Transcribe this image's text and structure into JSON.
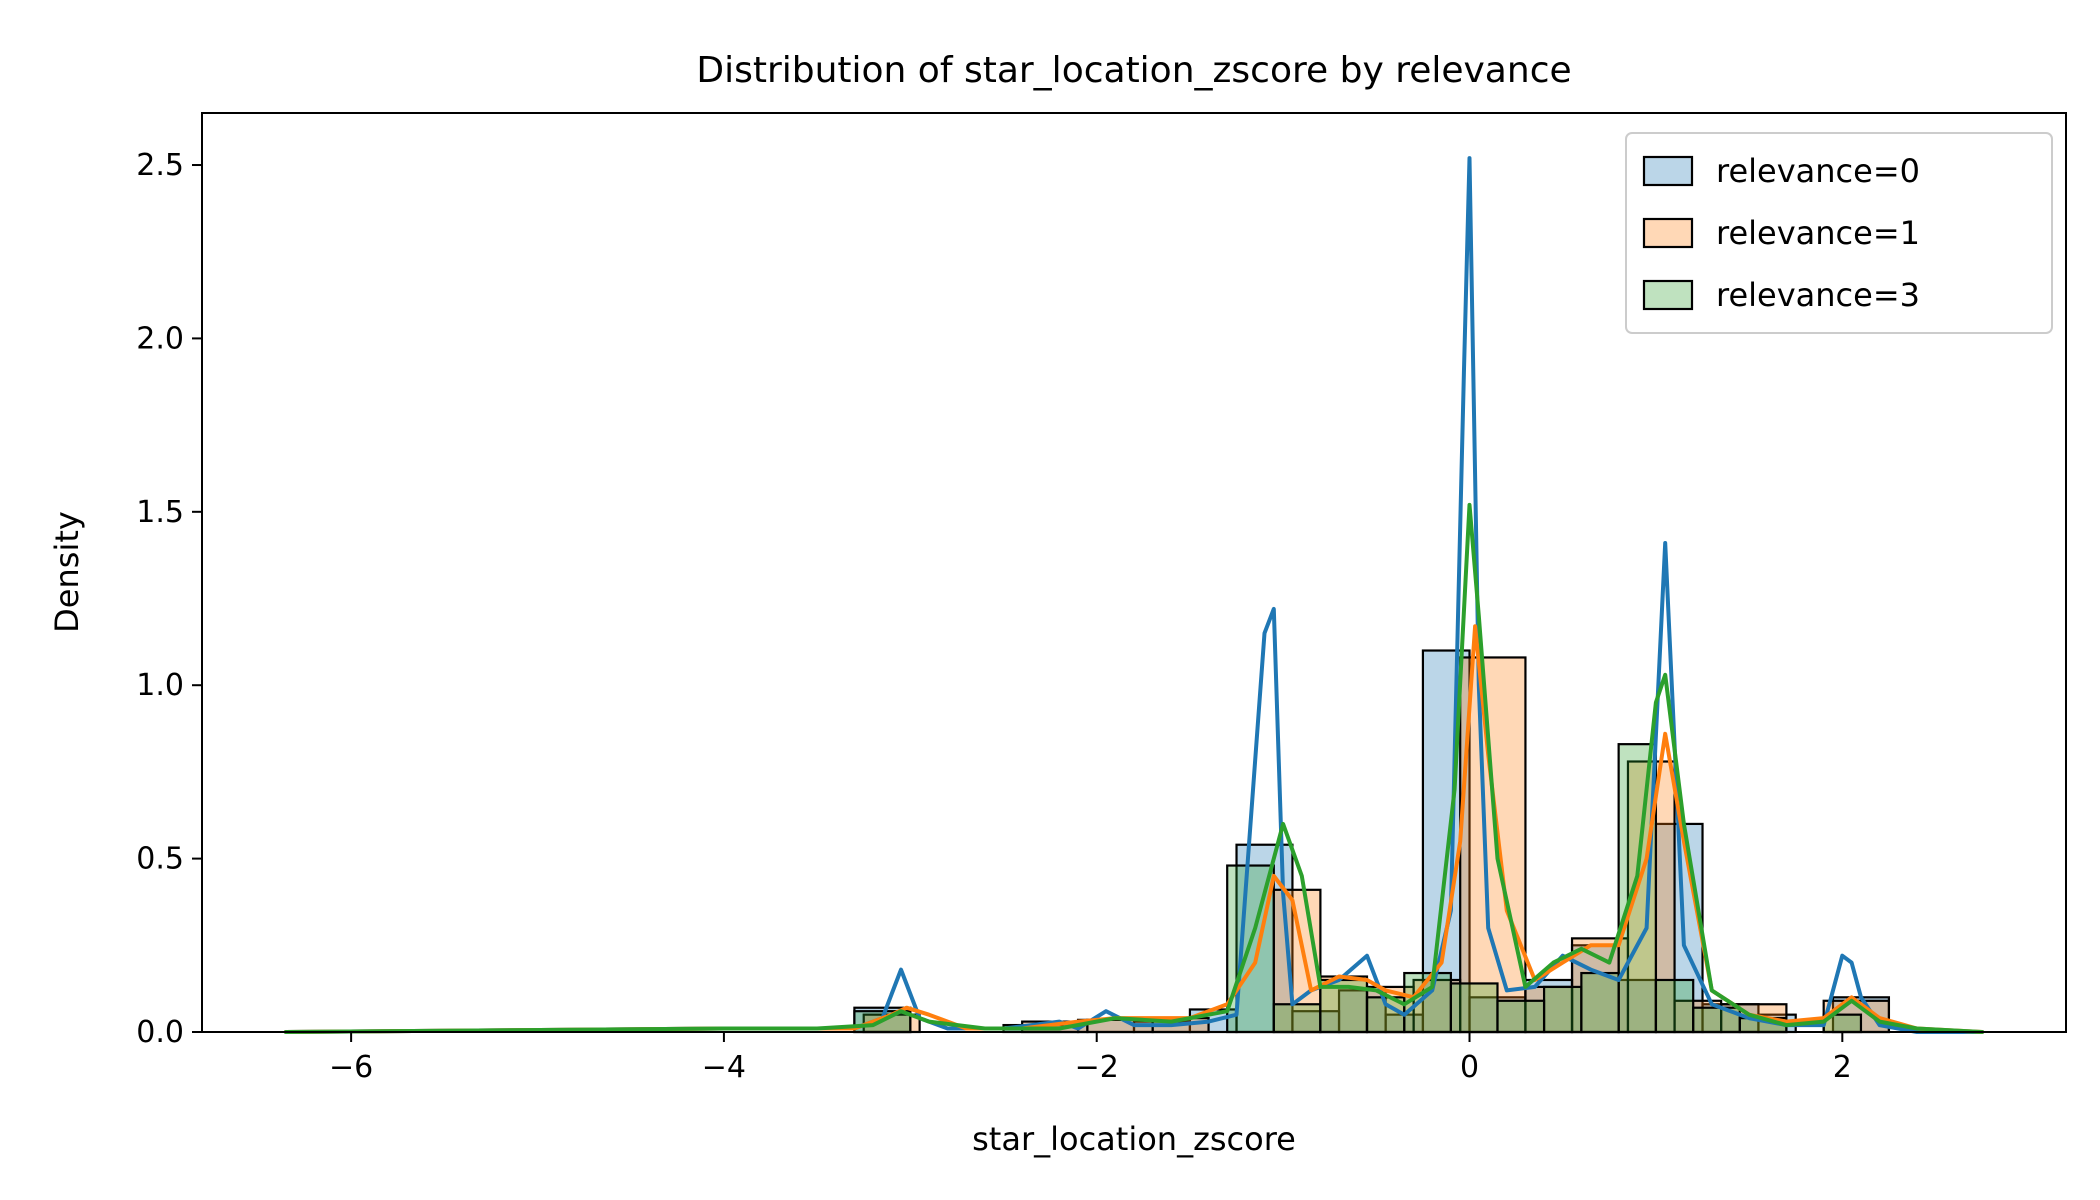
{
  "chart_data": {
    "type": "histogram+kde",
    "title": "Distribution of star_location_zscore by relevance",
    "xlabel": "star_location_zscore",
    "ylabel": "Density",
    "xlim": [
      -6.8,
      3.2
    ],
    "ylim": [
      0,
      2.65
    ],
    "xticks": [
      -6,
      -4,
      -2,
      0,
      2
    ],
    "yticks": [
      0.0,
      0.5,
      1.0,
      1.5,
      2.0,
      2.5
    ],
    "xtick_labels": [
      "−6",
      "−4",
      "−2",
      "0",
      "2"
    ],
    "ytick_labels": [
      "0.0",
      "0.5",
      "1.0",
      "1.5",
      "2.0",
      "2.5"
    ],
    "legend_position": "top-right",
    "grid": false,
    "series": [
      {
        "name": "relevance=0",
        "color": "#1f77b4",
        "fill": "rgba(31,119,180,0.3)",
        "hist": [
          [
            -3.3,
            -3.0,
            0.07
          ],
          [
            -2.5,
            -2.1,
            0.02
          ],
          [
            -2.1,
            -1.8,
            0.035
          ],
          [
            -1.8,
            -1.5,
            0.03
          ],
          [
            -1.5,
            -1.25,
            0.065
          ],
          [
            -1.25,
            -0.95,
            0.54
          ],
          [
            -0.95,
            -0.7,
            0.06
          ],
          [
            -0.7,
            -0.45,
            0.12
          ],
          [
            -0.45,
            -0.25,
            0.05
          ],
          [
            -0.25,
            0.0,
            1.1
          ],
          [
            0.0,
            0.3,
            0.1
          ],
          [
            0.3,
            0.55,
            0.15
          ],
          [
            0.55,
            0.8,
            0.25
          ],
          [
            0.8,
            1.0,
            0.15
          ],
          [
            1.0,
            1.25,
            0.6
          ],
          [
            1.25,
            1.55,
            0.08
          ],
          [
            1.55,
            1.75,
            0.05
          ],
          [
            1.95,
            2.25,
            0.1
          ]
        ],
        "kde_x": [
          -6.35,
          -4.0,
          -3.6,
          -3.3,
          -3.15,
          -3.05,
          -2.95,
          -2.8,
          -2.5,
          -2.2,
          -2.1,
          -1.95,
          -1.8,
          -1.6,
          -1.4,
          -1.25,
          -1.1,
          -1.05,
          -1.0,
          -0.95,
          -0.85,
          -0.7,
          -0.55,
          -0.45,
          -0.35,
          -0.2,
          -0.1,
          -0.03,
          0.0,
          0.05,
          0.1,
          0.2,
          0.35,
          0.5,
          0.65,
          0.8,
          0.95,
          1.05,
          1.15,
          1.3,
          1.5,
          1.7,
          1.9,
          2.0,
          2.05,
          2.1,
          2.2,
          2.4,
          2.75
        ],
        "kde_y": [
          0.0,
          0.01,
          0.01,
          0.01,
          0.04,
          0.18,
          0.04,
          0.01,
          0.01,
          0.03,
          0.01,
          0.06,
          0.02,
          0.02,
          0.03,
          0.05,
          1.15,
          1.22,
          0.4,
          0.08,
          0.12,
          0.15,
          0.22,
          0.08,
          0.05,
          0.12,
          0.35,
          1.9,
          2.52,
          1.0,
          0.3,
          0.12,
          0.13,
          0.22,
          0.18,
          0.15,
          0.3,
          1.41,
          0.25,
          0.08,
          0.04,
          0.02,
          0.02,
          0.22,
          0.2,
          0.1,
          0.02,
          0.0,
          0.0
        ]
      },
      {
        "name": "relevance=1",
        "color": "#ff7f0e",
        "fill": "rgba(255,127,14,0.3)",
        "hist": [
          [
            -3.25,
            -2.95,
            0.05
          ],
          [
            -2.4,
            -2.05,
            0.03
          ],
          [
            -2.05,
            -1.7,
            0.035
          ],
          [
            -1.7,
            -1.4,
            0.04
          ],
          [
            -1.05,
            -0.8,
            0.41
          ],
          [
            -0.8,
            -0.55,
            0.16
          ],
          [
            -0.55,
            -0.3,
            0.13
          ],
          [
            -0.3,
            -0.05,
            0.15
          ],
          [
            -0.05,
            0.3,
            1.08
          ],
          [
            0.3,
            0.55,
            0.13
          ],
          [
            0.55,
            0.85,
            0.27
          ],
          [
            0.85,
            1.1,
            0.78
          ],
          [
            1.1,
            1.35,
            0.09
          ],
          [
            1.35,
            1.7,
            0.08
          ],
          [
            1.9,
            2.25,
            0.09
          ]
        ],
        "kde_x": [
          -6.35,
          -4.0,
          -3.6,
          -3.3,
          -3.1,
          -3.02,
          -2.9,
          -2.7,
          -2.4,
          -2.1,
          -1.9,
          -1.7,
          -1.5,
          -1.3,
          -1.15,
          -1.05,
          -0.95,
          -0.85,
          -0.7,
          -0.55,
          -0.45,
          -0.3,
          -0.15,
          -0.05,
          0.03,
          0.1,
          0.2,
          0.35,
          0.5,
          0.65,
          0.8,
          0.95,
          1.05,
          1.15,
          1.3,
          1.5,
          1.7,
          1.9,
          2.05,
          2.2,
          2.4,
          2.75
        ],
        "kde_y": [
          0.0,
          0.01,
          0.01,
          0.01,
          0.05,
          0.07,
          0.05,
          0.01,
          0.01,
          0.03,
          0.04,
          0.04,
          0.04,
          0.08,
          0.2,
          0.45,
          0.38,
          0.12,
          0.16,
          0.15,
          0.12,
          0.1,
          0.2,
          0.55,
          1.17,
          0.8,
          0.35,
          0.15,
          0.2,
          0.25,
          0.25,
          0.5,
          0.86,
          0.55,
          0.12,
          0.05,
          0.03,
          0.04,
          0.1,
          0.04,
          0.01,
          0.0
        ]
      },
      {
        "name": "relevance=3",
        "color": "#2ca02c",
        "fill": "rgba(44,160,44,0.3)",
        "hist": [
          [
            -3.3,
            -3.0,
            0.06
          ],
          [
            -1.3,
            -1.05,
            0.48
          ],
          [
            -1.05,
            -0.8,
            0.08
          ],
          [
            -0.8,
            -0.55,
            0.15
          ],
          [
            -0.55,
            -0.35,
            0.1
          ],
          [
            -0.35,
            -0.1,
            0.17
          ],
          [
            -0.1,
            0.15,
            0.14
          ],
          [
            0.15,
            0.4,
            0.09
          ],
          [
            0.4,
            0.6,
            0.13
          ],
          [
            0.6,
            0.8,
            0.17
          ],
          [
            0.8,
            1.0,
            0.83
          ],
          [
            1.0,
            1.2,
            0.15
          ],
          [
            1.2,
            1.45,
            0.07
          ],
          [
            1.45,
            1.7,
            0.04
          ],
          [
            1.9,
            2.1,
            0.05
          ]
        ],
        "kde_x": [
          -6.35,
          -4.0,
          -3.5,
          -3.2,
          -3.05,
          -2.9,
          -2.6,
          -2.2,
          -1.9,
          -1.6,
          -1.3,
          -1.15,
          -1.0,
          -0.9,
          -0.8,
          -0.65,
          -0.5,
          -0.35,
          -0.2,
          -0.08,
          0.0,
          0.05,
          0.15,
          0.3,
          0.45,
          0.6,
          0.75,
          0.9,
          1.0,
          1.05,
          1.15,
          1.3,
          1.5,
          1.7,
          1.9,
          2.05,
          2.2,
          2.4,
          2.75
        ],
        "kde_y": [
          0.0,
          0.01,
          0.01,
          0.02,
          0.06,
          0.03,
          0.01,
          0.01,
          0.04,
          0.03,
          0.06,
          0.3,
          0.6,
          0.45,
          0.13,
          0.13,
          0.12,
          0.08,
          0.13,
          0.7,
          1.52,
          1.2,
          0.5,
          0.13,
          0.2,
          0.24,
          0.2,
          0.45,
          0.95,
          1.03,
          0.6,
          0.12,
          0.05,
          0.02,
          0.03,
          0.09,
          0.03,
          0.01,
          0.0
        ]
      }
    ]
  }
}
